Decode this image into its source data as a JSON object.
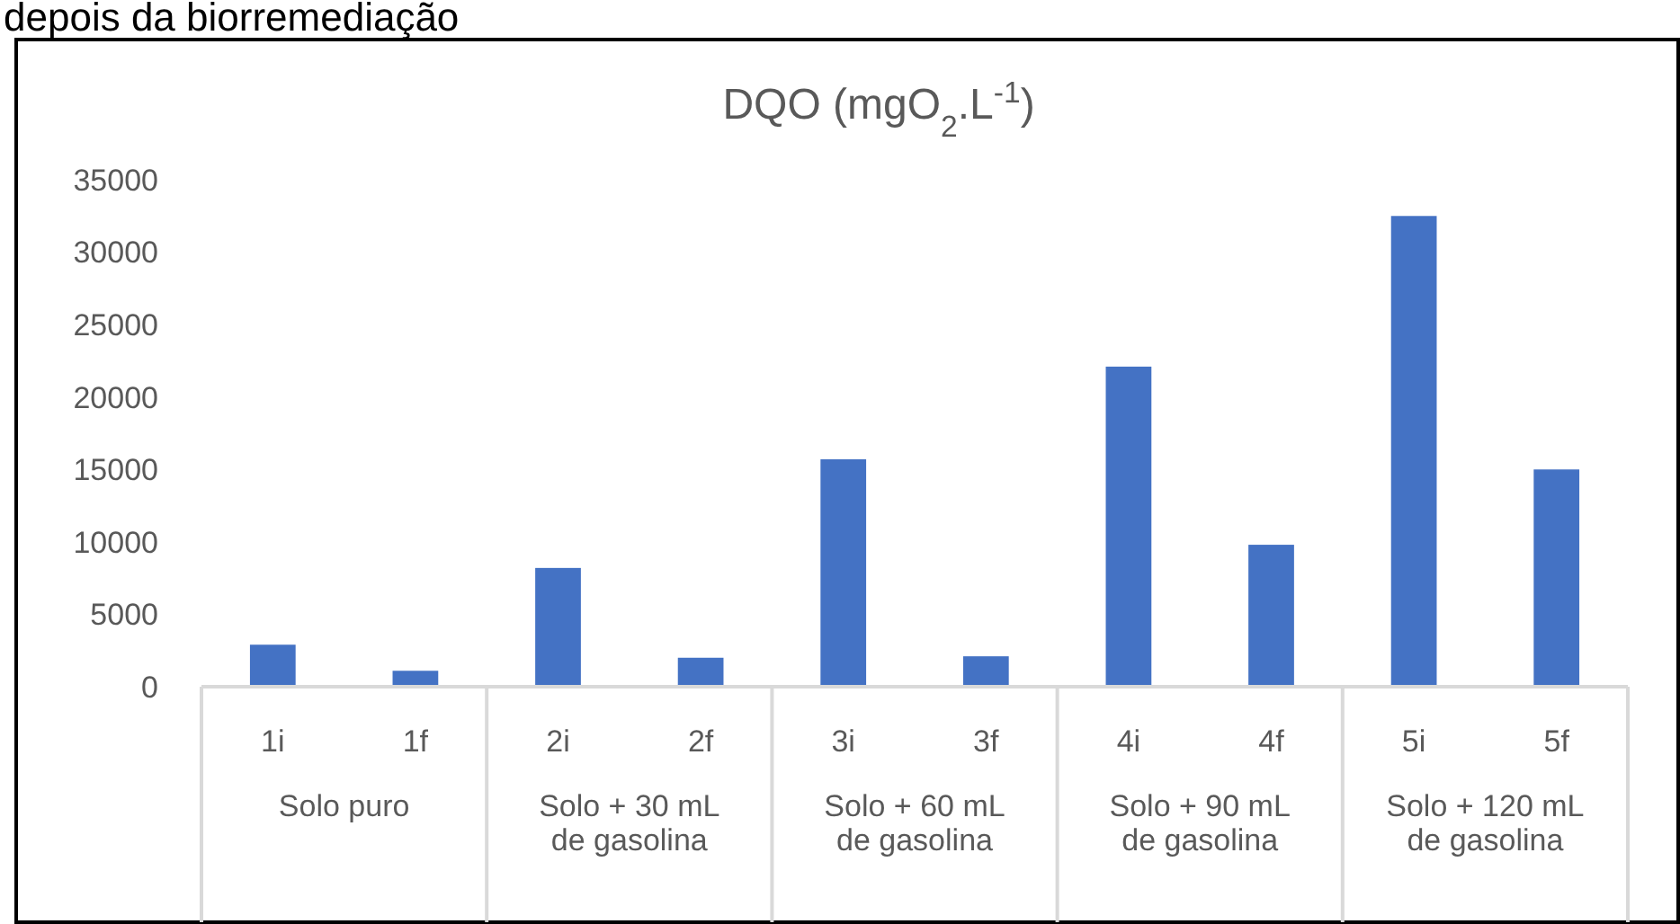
{
  "chart_data": {
    "type": "bar",
    "title": "DQO (mgO$_{2}$.L$^{-1}$)",
    "categories": [
      "1i",
      "1f",
      "2i",
      "2f",
      "3i",
      "3f",
      "4i",
      "4f",
      "5i",
      "5f"
    ],
    "values": [
      2900,
      1100,
      8200,
      2000,
      15700,
      2100,
      22100,
      9800,
      32500,
      15000
    ],
    "color": "#4472c4",
    "ylim": [
      0,
      35000
    ],
    "yticks": [
      0,
      5000,
      10000,
      15000,
      20000,
      25000,
      30000,
      35000
    ],
    "grid": false,
    "annotations": [
      "depois da biorremediação",
      "Solo puro",
      "Solo + 30 mL de gasolina",
      "Solo + 60 mL de gasolina",
      "Solo + 90 mL de gasolina",
      "Solo + 120 mL de gasolina"
    ]
  }
}
